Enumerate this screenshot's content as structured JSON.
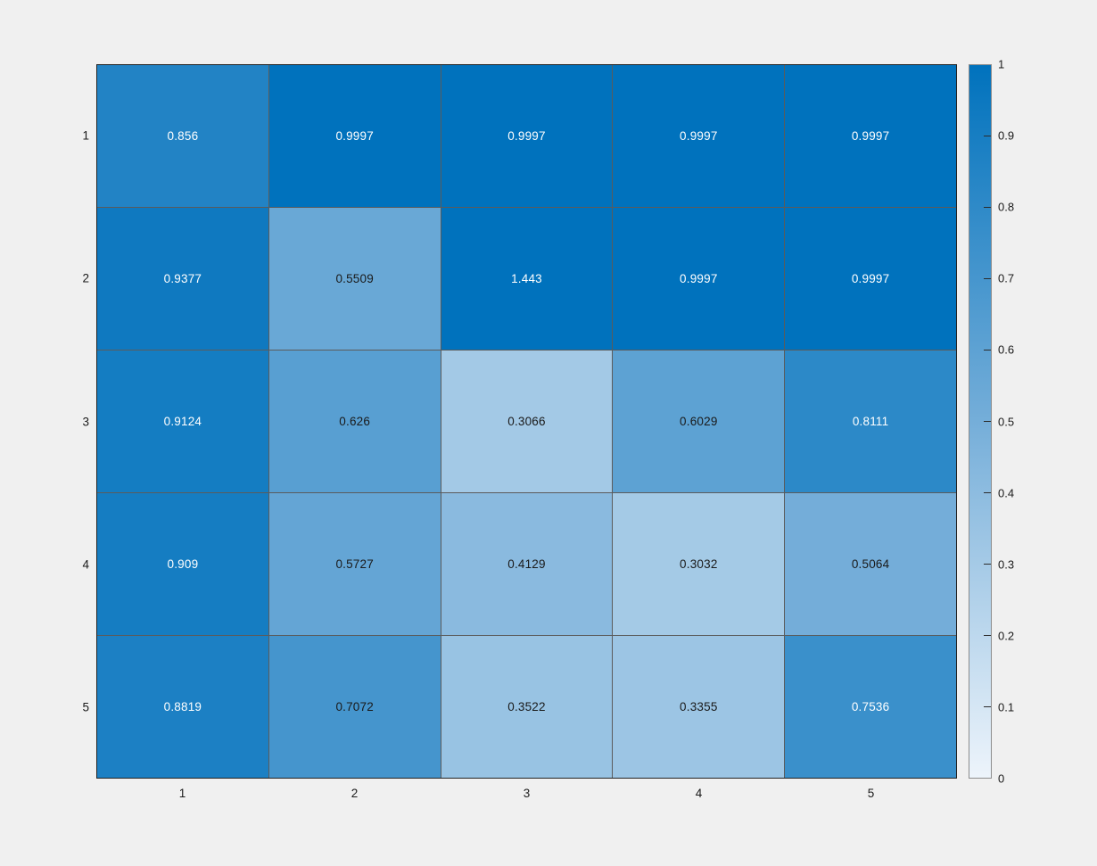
{
  "figure": {
    "background_color": "#f0f0f0",
    "grid_line_color": "rgba(0,0,0,0.62)",
    "colorbar_border_color": "#8c8c8c"
  },
  "chart_data": {
    "type": "heatmap",
    "title": "",
    "xlabel": "",
    "ylabel": "",
    "x_tick_labels": [
      "1",
      "2",
      "3",
      "4",
      "5"
    ],
    "y_tick_labels": [
      "1",
      "2",
      "3",
      "4",
      "5"
    ],
    "values": [
      [
        0.856,
        0.9997,
        0.9997,
        0.9997,
        0.9997
      ],
      [
        0.9377,
        0.5509,
        1.443,
        0.9997,
        0.9997
      ],
      [
        0.9124,
        0.626,
        0.3066,
        0.6029,
        0.8111
      ],
      [
        0.909,
        0.5727,
        0.4129,
        0.3032,
        0.5064
      ],
      [
        0.8819,
        0.7072,
        0.3522,
        0.3355,
        0.7536
      ]
    ],
    "cell_labels": [
      [
        "0.856",
        "0.9997",
        "0.9997",
        "0.9997",
        "0.9997"
      ],
      [
        "0.9377",
        "0.5509",
        "1.443",
        "0.9997",
        "0.9997"
      ],
      [
        "0.9124",
        "0.626",
        "0.3066",
        "0.6029",
        "0.8111"
      ],
      [
        "0.909",
        "0.5727",
        "0.4129",
        "0.3032",
        "0.5064"
      ],
      [
        "0.8819",
        "0.7072",
        "0.3522",
        "0.3355",
        "0.7536"
      ]
    ],
    "color_limits": [
      0,
      1
    ],
    "colormap_stops": [
      {
        "t": 0,
        "color": "#edf4fb"
      },
      {
        "t": 0.5,
        "color": "#75aed9"
      },
      {
        "t": 1,
        "color": "#0072bd"
      }
    ],
    "cell_text_color_light": "#ffffff",
    "cell_text_color_dark": "#1a1a1a",
    "colorbar": {
      "position": "right",
      "min": 0,
      "max": 1,
      "tick_labels": [
        "0",
        "0.1",
        "0.2",
        "0.3",
        "0.4",
        "0.5",
        "0.6",
        "0.7",
        "0.8",
        "0.9",
        "1"
      ]
    }
  }
}
